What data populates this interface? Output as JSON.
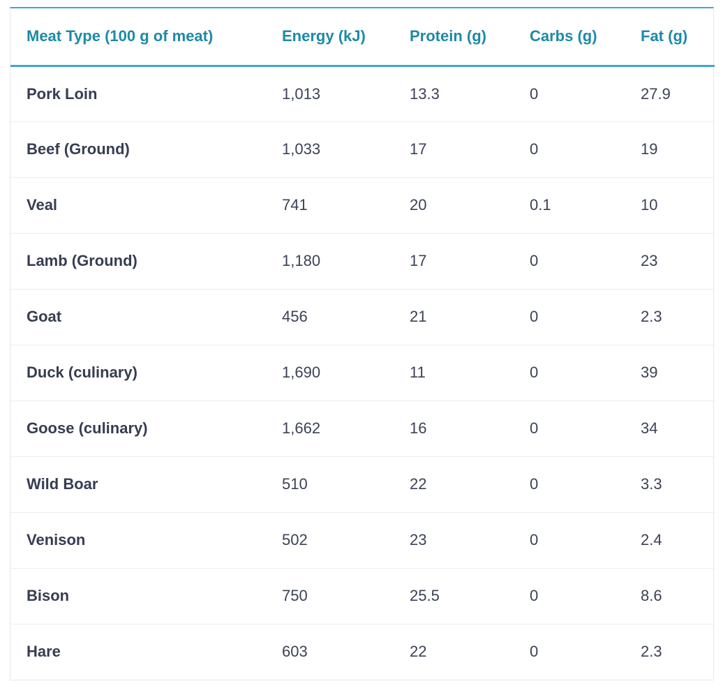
{
  "table": {
    "headers": [
      "Meat Type (100 g of meat)",
      "Energy (kJ)",
      "Protein (g)",
      "Carbs (g)",
      "Fat (g)"
    ],
    "rows": [
      [
        "Pork Loin",
        "1,013",
        "13.3",
        "0",
        "27.9"
      ],
      [
        "Beef (Ground)",
        "1,033",
        "17",
        "0",
        "19"
      ],
      [
        "Veal",
        "741",
        "20",
        "0.1",
        "10"
      ],
      [
        "Lamb (Ground)",
        "1,180",
        "17",
        "0",
        "23"
      ],
      [
        "Goat",
        "456",
        "21",
        "0",
        "2.3"
      ],
      [
        "Duck (culinary)",
        "1,690",
        "11",
        "0",
        "39"
      ],
      [
        "Goose (culinary)",
        "1,662",
        "16",
        "0",
        "34"
      ],
      [
        "Wild Boar",
        "510",
        "22",
        "0",
        "3.3"
      ],
      [
        "Venison",
        "502",
        "23",
        "0",
        "2.4"
      ],
      [
        "Bison",
        "750",
        "25.5",
        "0",
        "8.6"
      ],
      [
        "Hare",
        "603",
        "22",
        "0",
        "2.3"
      ]
    ]
  },
  "colors": {
    "accent": "#3fa9c9",
    "header_text": "#1d8aa6",
    "body_text": "#3b4256"
  }
}
